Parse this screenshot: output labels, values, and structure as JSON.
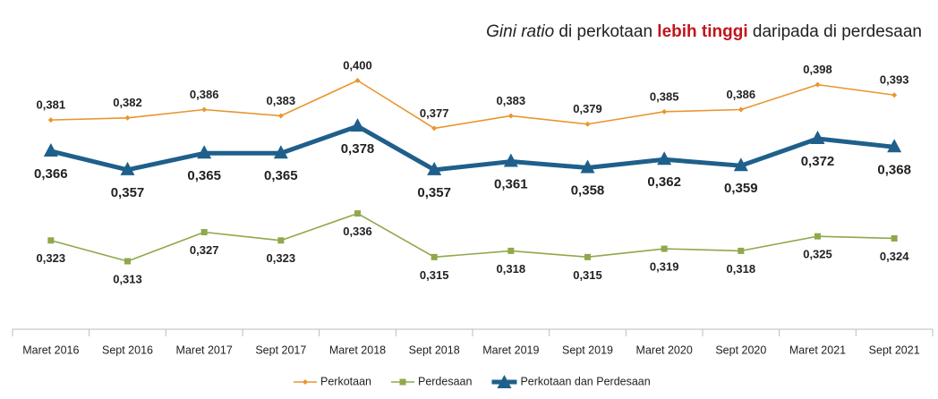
{
  "chart_data": {
    "type": "line",
    "title": [
      "Gini ratio",
      " di perkotaan ",
      "lebih tinggi",
      " daripada di perdesaan"
    ],
    "categories": [
      "Maret 2016",
      "Sept 2016",
      "Maret 2017",
      "Sept 2017",
      "Maret 2018",
      "Sept 2018",
      "Maret 2019",
      "Sept 2019",
      "Maret 2020",
      "Sept 2020",
      "Maret 2021",
      "Sept 2021"
    ],
    "series": [
      {
        "name": "Perkotaan",
        "color": "#e8962e",
        "marker": "diamond",
        "values": [
          0.381,
          0.382,
          0.386,
          0.383,
          0.4,
          0.377,
          0.383,
          0.379,
          0.385,
          0.386,
          0.398,
          0.393
        ],
        "value_labels": [
          "0,381",
          "0,382",
          "0,386",
          "0,383",
          "0,400",
          "0,377",
          "0,383",
          "0,379",
          "0,385",
          "0,386",
          "0,398",
          "0,393"
        ]
      },
      {
        "name": "Perdesaan",
        "color": "#8fa84a",
        "marker": "square",
        "values": [
          0.323,
          0.313,
          0.327,
          0.323,
          0.336,
          0.315,
          0.318,
          0.315,
          0.319,
          0.318,
          0.325,
          0.324
        ],
        "value_labels": [
          "0,323",
          "0,313",
          "0,327",
          "0,323",
          "0,336",
          "0,315",
          "0,318",
          "0,315",
          "0,319",
          "0,318",
          "0,325",
          "0,324"
        ]
      },
      {
        "name": "Perkotaan dan Perdesaan",
        "color": "#1f5f8b",
        "marker": "triangle",
        "values": [
          0.366,
          0.357,
          0.365,
          0.365,
          0.378,
          0.357,
          0.361,
          0.358,
          0.362,
          0.359,
          0.372,
          0.368
        ],
        "value_labels": [
          "0,366",
          "0,357",
          "0,365",
          "0,365",
          "0,378",
          "0,357",
          "0,361",
          "0,358",
          "0,362",
          "0,359",
          "0,372",
          "0,368"
        ]
      }
    ],
    "legend": "bottom"
  }
}
